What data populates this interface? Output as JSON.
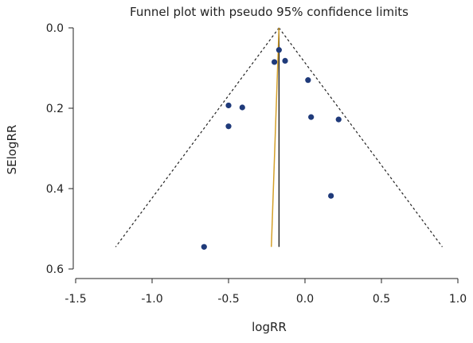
{
  "chart_data": {
    "type": "scatter",
    "title": "Funnel plot with pseudo 95% confidence limits",
    "xlabel": "logRR",
    "ylabel": "SElogRR",
    "xlim": [
      -1.5,
      1.0
    ],
    "ylim": [
      0.6,
      0.0
    ],
    "y_axis_inverted": true,
    "x_ticks": [
      -1.5,
      -1.0,
      -0.5,
      0.0,
      0.5,
      1.0
    ],
    "x_tick_labels": [
      "-1.5",
      "-1.0",
      "-0.5",
      "0.0",
      "0.5",
      "1.0"
    ],
    "y_ticks": [
      0.0,
      0.2,
      0.4,
      0.6
    ],
    "y_tick_labels": [
      "0.0",
      "0.2",
      "0.4",
      "0.6"
    ],
    "grid": false,
    "legend": "none",
    "pooled_estimate": -0.17,
    "se_max": 0.545,
    "confidence_z": 1.96,
    "points": [
      {
        "x": -0.17,
        "y": 0.055
      },
      {
        "x": -0.2,
        "y": 0.085
      },
      {
        "x": -0.13,
        "y": 0.082
      },
      {
        "x": 0.02,
        "y": 0.13
      },
      {
        "x": -0.5,
        "y": 0.193
      },
      {
        "x": -0.41,
        "y": 0.198
      },
      {
        "x": 0.04,
        "y": 0.222
      },
      {
        "x": 0.22,
        "y": 0.228
      },
      {
        "x": -0.5,
        "y": 0.245
      },
      {
        "x": 0.17,
        "y": 0.418
      },
      {
        "x": -0.66,
        "y": 0.545
      }
    ],
    "regression_line": {
      "x_start": -0.17,
      "y_start": 0.0,
      "x_end": -0.22,
      "y_end": 0.545
    },
    "colors": {
      "points": "#1f3a7a",
      "funnel": "#222222",
      "pooled_line": "#000000",
      "regression_line": "#d4a02a",
      "axes": "#222222"
    }
  }
}
